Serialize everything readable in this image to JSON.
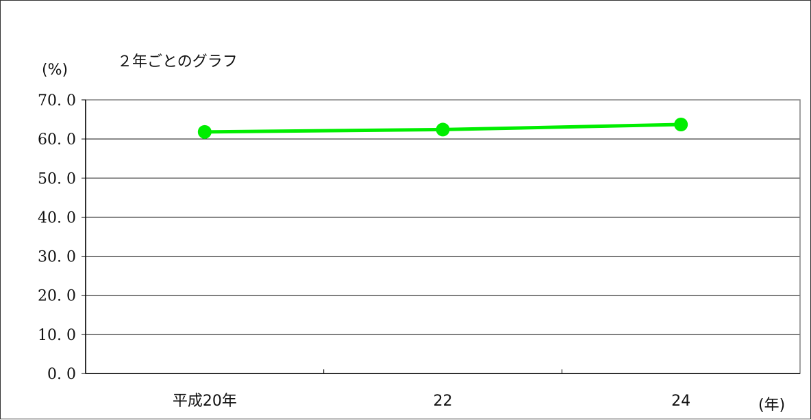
{
  "chart_data": {
    "type": "line",
    "title": "２年ごとのグラフ",
    "ylabel": "(%)",
    "xlabel": "(年)",
    "categories": [
      "平成20年",
      "22",
      "24"
    ],
    "series": [
      {
        "values": [
          61.8,
          62.4,
          63.7
        ],
        "color": "#00ee00"
      }
    ],
    "ylim": [
      0,
      70
    ],
    "yticks": [
      0,
      10,
      20,
      30,
      40,
      50,
      60,
      70
    ],
    "ytick_labels": [
      "0. 0",
      "10. 0",
      "20. 0",
      "30. 0",
      "40. 0",
      "50. 0",
      "60. 0",
      "70. 0"
    ],
    "grid": true,
    "legend": "none",
    "colors": {
      "gridline": "#000000",
      "plot_border": "#808080",
      "series": "#00ee00"
    }
  }
}
